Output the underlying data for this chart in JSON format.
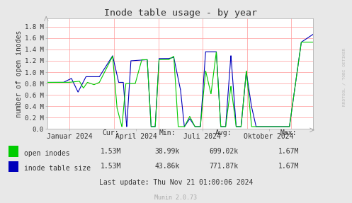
{
  "title": "Inode table usage - by year",
  "ylabel": "number of open inodes",
  "background_color": "#e8e8e8",
  "plot_bg_color": "#ffffff",
  "grid_color": "#ff9999",
  "title_color": "#333333",
  "text_color": "#333333",
  "axis_color": "#aaaaaa",
  "green_color": "#00cc00",
  "blue_color": "#0000bb",
  "x_ticks": [
    "Januar 2024",
    "April 2024",
    "Juli 2024",
    "Oktober 2024"
  ],
  "x_tick_pos": [
    0.083,
    0.333,
    0.583,
    0.833
  ],
  "y_ticks": [
    "0.0",
    "0.2 M",
    "0.4 M",
    "0.6 M",
    "0.8 M",
    "1.0 M",
    "1.2 M",
    "1.4 M",
    "1.6 M",
    "1.8 M"
  ],
  "y_tick_vals": [
    0.0,
    0.2,
    0.4,
    0.6,
    0.8,
    1.0,
    1.2,
    1.4,
    1.6,
    1.8
  ],
  "ylim": [
    0.0,
    1.95
  ],
  "legend_entries": [
    "open inodes",
    "inode table size"
  ],
  "stats_header": [
    "Cur:",
    "Min:",
    "Avg:",
    "Max:"
  ],
  "stats_open": [
    "1.53M",
    "38.99k",
    "699.02k",
    "1.67M"
  ],
  "stats_table": [
    "1.53M",
    "43.86k",
    "771.87k",
    "1.67M"
  ],
  "last_update": "Last update: Thu Nov 21 01:00:06 2024",
  "munin_version": "Munin 2.0.73",
  "watermark": "RRDTOOL / TOBI OETIKER"
}
